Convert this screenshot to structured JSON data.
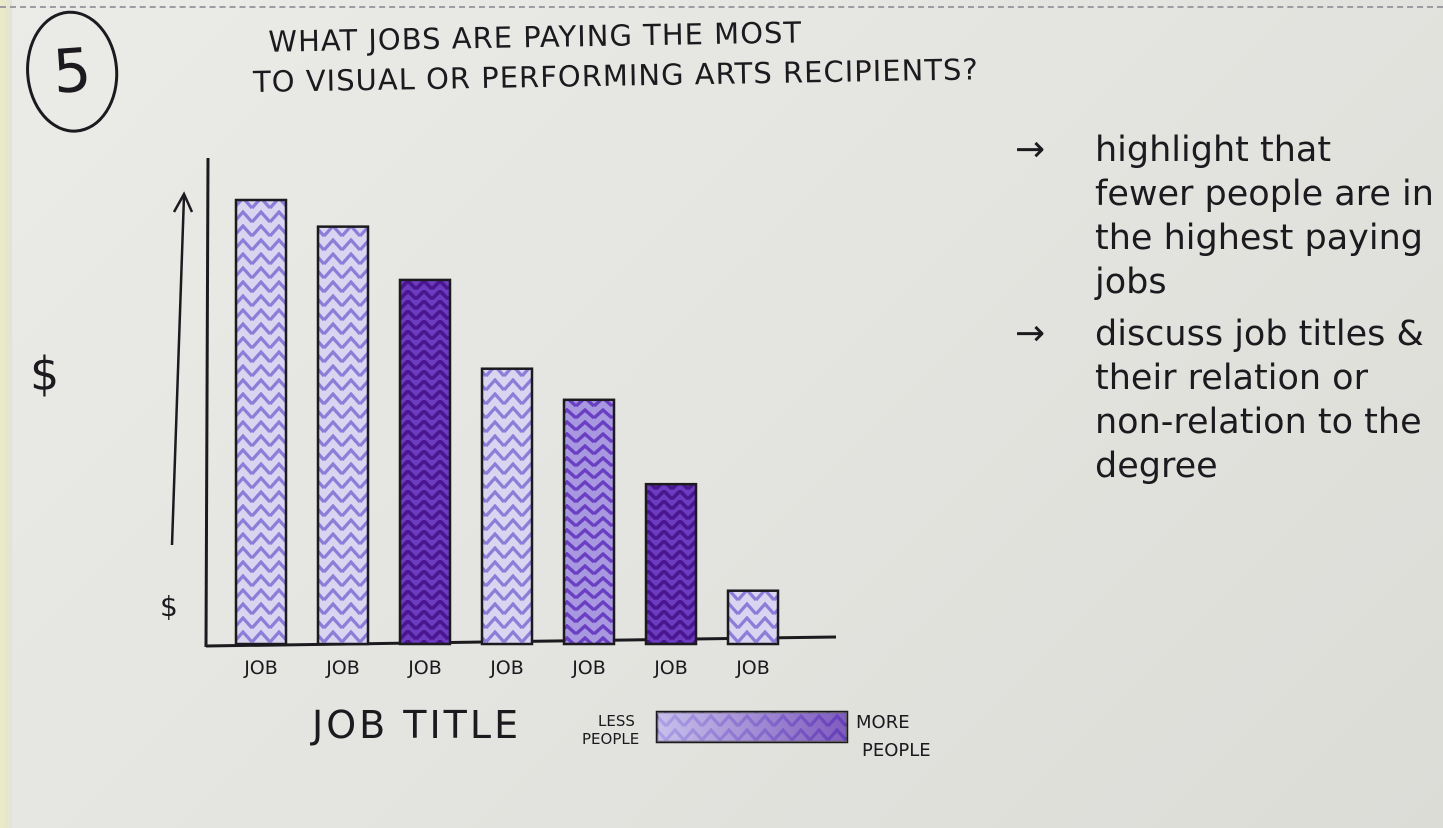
{
  "card": {
    "step_number": "5",
    "title_lines": [
      "WHAT JOBS ARE PAYING THE MOST",
      "TO VISUAL OR PERFORMING ARTS RECIPIENTS?"
    ]
  },
  "notes": [
    {
      "arrow": "→",
      "text": "highlight that fewer people are in the highest paying jobs"
    },
    {
      "arrow": "→",
      "text": "discuss job titles & their relation or non-relation to the degree"
    }
  ],
  "colors": {
    "ink": "#1c1a1e",
    "light_purple": "#8a7ed9",
    "dark_purple": "#5a22b6",
    "paper": "#e6e6e2"
  },
  "chart_data": {
    "type": "bar",
    "title": "WHAT JOBS ARE PAYING THE MOST TO VISUAL OR PERFORMING ARTS RECIPIENTS?",
    "xlabel": "JOB TITLE",
    "ylabel": "$",
    "y_axis_marker": "$",
    "categories": [
      "JOB",
      "JOB",
      "JOB",
      "JOB",
      "JOB",
      "JOB",
      "JOB"
    ],
    "values": [
      100,
      94,
      82,
      62,
      55,
      36,
      12
    ],
    "people_shade": [
      0.2,
      0.3,
      0.85,
      0.3,
      0.65,
      0.95,
      0.35
    ],
    "ylim": [
      0,
      100
    ],
    "grid": false,
    "legend": {
      "placement": "bottom",
      "low_label": "LESS PEOPLE",
      "high_label": "MORE PEOPLE"
    }
  }
}
